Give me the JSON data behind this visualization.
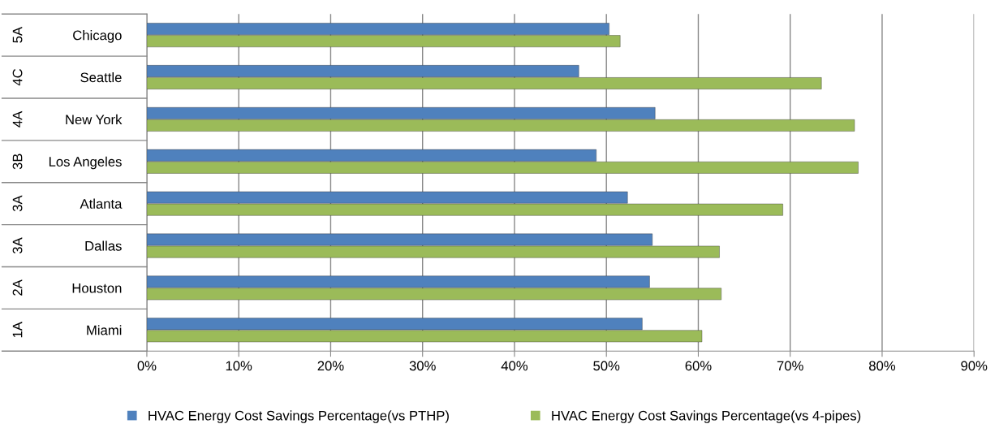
{
  "chart_data": {
    "type": "bar",
    "orientation": "horizontal",
    "categories": [
      "Chicago",
      "Seattle",
      "New York",
      "Los Angeles",
      "Atlanta",
      "Dallas",
      "Houston",
      "Miami"
    ],
    "series": [
      {
        "name": "HVAC Energy Cost Savings Percentage(vs PTHP)",
        "color": "#4f81bd",
        "values": [
          50.3,
          47.0,
          55.3,
          48.9,
          52.3,
          55.0,
          54.7,
          53.9
        ]
      },
      {
        "name": "HVAC Energy Cost Savings Percentage(vs 4-pipes)",
        "color": "#9bbb59",
        "values": [
          51.5,
          73.4,
          77.0,
          77.4,
          69.2,
          62.3,
          62.5,
          60.4
        ]
      }
    ],
    "xlim": [
      0,
      90
    ],
    "xticks": [
      {
        "value": 0,
        "label": "0%"
      },
      {
        "value": 10,
        "label": "10%"
      },
      {
        "value": 20,
        "label": "20%"
      },
      {
        "value": 30,
        "label": "30%"
      },
      {
        "value": 40,
        "label": "40%"
      },
      {
        "value": 50,
        "label": "50%"
      },
      {
        "value": 60,
        "label": "60%"
      },
      {
        "value": 70,
        "label": "70%"
      },
      {
        "value": 80,
        "label": "80%"
      },
      {
        "value": 90,
        "label": "90%"
      }
    ],
    "annotations": [
      "5A",
      "4C",
      "4A",
      "3B",
      "3A",
      "3A",
      "2A",
      "1A"
    ],
    "grid": "x",
    "legend": "bottom"
  }
}
